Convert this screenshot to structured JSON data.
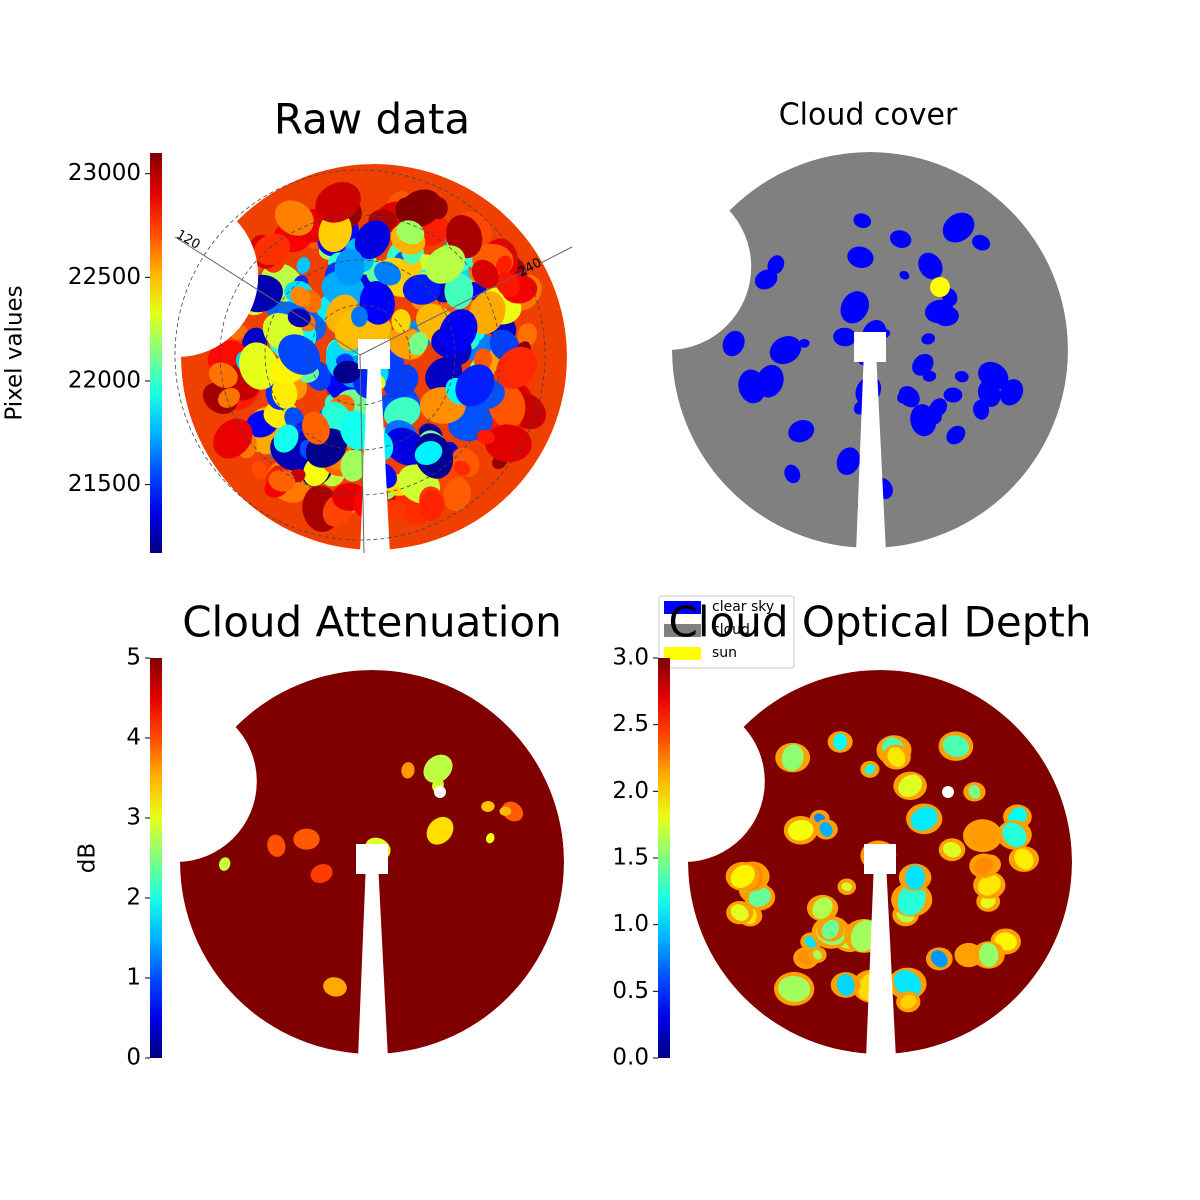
{
  "chart_data": [
    {
      "type": "sky-image",
      "title": "Raw data",
      "colormap": "jet",
      "colorbar": {
        "label": "Pixel values",
        "ylim": [
          21170,
          23100
        ],
        "yticks": [
          21500,
          22000,
          22500,
          23000
        ]
      },
      "annotations": [
        "120",
        "240"
      ]
    },
    {
      "type": "sky-mask",
      "title": "Cloud cover",
      "series": [
        {
          "name": "clear sky",
          "color": "#0000ff"
        },
        {
          "name": "cloud",
          "color": "#808080"
        },
        {
          "name": "sun",
          "color": "#ffff00"
        }
      ]
    },
    {
      "type": "sky-image",
      "title": "Cloud Attenuation",
      "colormap": "jet",
      "colorbar": {
        "label": "dB",
        "ylim": [
          0,
          5
        ],
        "yticks": [
          0,
          1,
          2,
          3,
          4,
          5
        ]
      }
    },
    {
      "type": "sky-image",
      "title": "Cloud Optical Depth",
      "colormap": "jet",
      "colorbar": {
        "ylim": [
          0,
          3
        ],
        "yticks": [
          {
            "value": 0,
            "label": "0.0"
          },
          0.5,
          {
            "value": 1,
            "label": "1.0"
          },
          1.5,
          {
            "value": 2,
            "label": "2.0"
          },
          2.5,
          {
            "value": 3,
            "label": "3.0"
          }
        ]
      }
    }
  ]
}
